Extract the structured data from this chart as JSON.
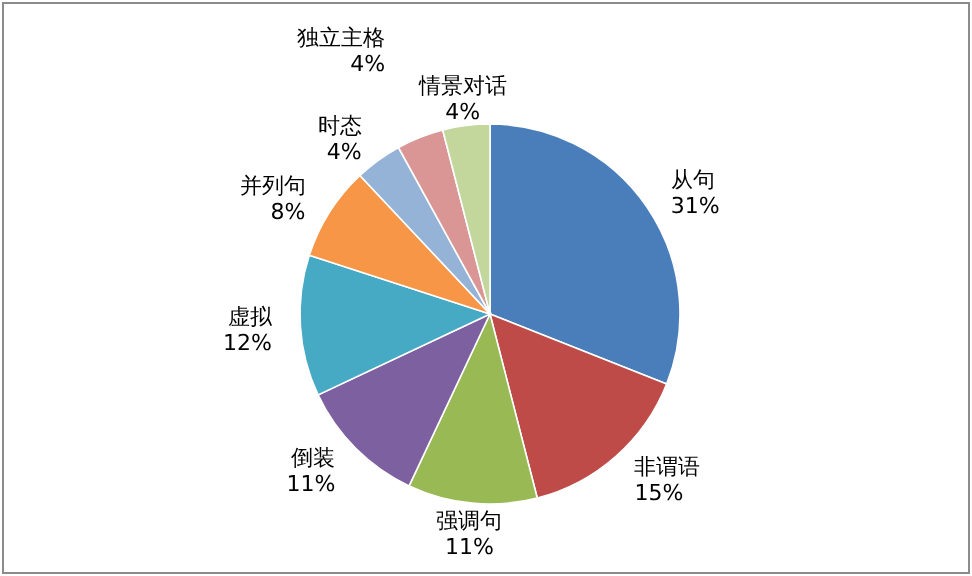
{
  "chart_data": {
    "type": "pie",
    "categories": [
      "从句",
      "非谓语",
      "强调句",
      "倒装",
      "虚拟",
      "并列句",
      "时态",
      "独立主格",
      "情景对话"
    ],
    "values": [
      31,
      15,
      11,
      11,
      12,
      8,
      4,
      4,
      4
    ],
    "colors": [
      "#4a7ebb",
      "#be4b48",
      "#98b954",
      "#7d60a0",
      "#46aac5",
      "#f79646",
      "#95b3d7",
      "#d99694",
      "#c3d69b"
    ],
    "value_labels": [
      "31%",
      "15%",
      "11%",
      "11%",
      "12%",
      "8%",
      "4%",
      "4%",
      "4%"
    ],
    "legend": false
  }
}
